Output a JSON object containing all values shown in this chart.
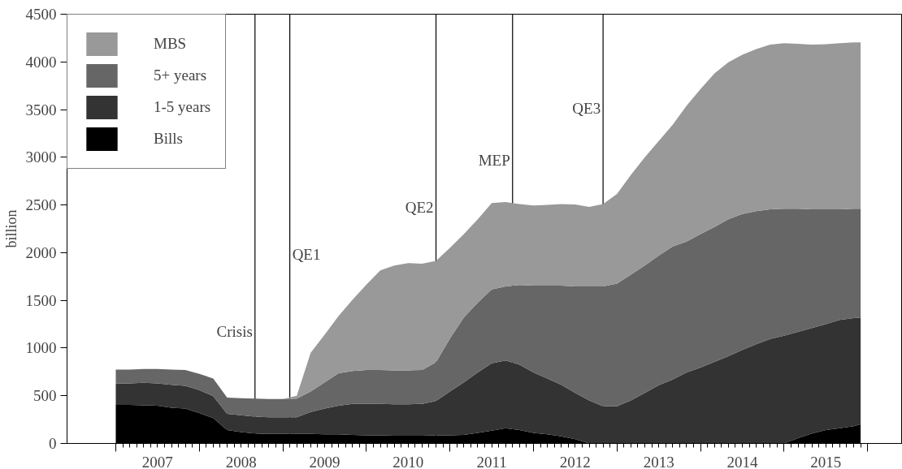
{
  "chart_data": {
    "type": "area",
    "stacked": true,
    "ylabel": "billion",
    "x": [
      "2007-01",
      "2007-03",
      "2007-05",
      "2007-07",
      "2007-09",
      "2007-11",
      "2008-01",
      "2008-03",
      "2008-05",
      "2008-07",
      "2008-09",
      "2008-11",
      "2009-01",
      "2009-03",
      "2009-05",
      "2009-07",
      "2009-09",
      "2009-11",
      "2010-01",
      "2010-03",
      "2010-05",
      "2010-07",
      "2010-09",
      "2010-11",
      "2011-01",
      "2011-03",
      "2011-05",
      "2011-07",
      "2011-09",
      "2011-11",
      "2012-01",
      "2012-03",
      "2012-05",
      "2012-07",
      "2012-09",
      "2012-11",
      "2013-01",
      "2013-03",
      "2013-05",
      "2013-07",
      "2013-09",
      "2013-11",
      "2014-01",
      "2014-03",
      "2014-05",
      "2014-07",
      "2014-09",
      "2014-11",
      "2015-01",
      "2015-03",
      "2015-05",
      "2015-07",
      "2015-09",
      "2015-11",
      "2015-12"
    ],
    "series": [
      {
        "name": "Bills",
        "color": "#000000",
        "values": [
          405,
          405,
          400,
          395,
          375,
          365,
          320,
          265,
          140,
          120,
          105,
          100,
          100,
          100,
          100,
          95,
          95,
          90,
          85,
          85,
          80,
          80,
          80,
          85,
          85,
          90,
          110,
          135,
          160,
          140,
          110,
          95,
          75,
          45,
          0,
          0,
          0,
          0,
          0,
          0,
          0,
          0,
          0,
          0,
          0,
          0,
          0,
          0,
          0,
          55,
          105,
          140,
          160,
          180,
          200
        ]
      },
      {
        "name": "1-5 years",
        "color": "#333333",
        "values": [
          225,
          225,
          235,
          235,
          240,
          240,
          240,
          230,
          170,
          175,
          175,
          175,
          175,
          175,
          230,
          270,
          300,
          325,
          330,
          330,
          330,
          330,
          335,
          360,
          460,
          550,
          635,
          705,
          710,
          685,
          635,
          585,
          540,
          485,
          450,
          390,
          390,
          450,
          530,
          610,
          670,
          745,
          795,
          855,
          915,
          980,
          1040,
          1095,
          1130,
          1115,
          1105,
          1110,
          1135,
          1135,
          1120
        ]
      },
      {
        "name": "5+ years",
        "color": "#666666",
        "values": [
          145,
          145,
          145,
          150,
          160,
          165,
          170,
          185,
          170,
          180,
          190,
          190,
          190,
          195,
          215,
          275,
          340,
          345,
          355,
          355,
          355,
          355,
          355,
          405,
          555,
          680,
          730,
          775,
          775,
          835,
          910,
          975,
          1040,
          1115,
          1195,
          1255,
          1285,
          1320,
          1335,
          1360,
          1395,
          1370,
          1400,
          1415,
          1435,
          1425,
          1395,
          1360,
          1330,
          1290,
          1245,
          1205,
          1160,
          1145,
          1140
        ]
      },
      {
        "name": "MBS",
        "color": "#999999",
        "values": [
          0,
          0,
          0,
          0,
          0,
          0,
          0,
          0,
          0,
          0,
          0,
          0,
          0,
          30,
          405,
          500,
          600,
          745,
          895,
          1045,
          1100,
          1125,
          1115,
          1065,
          950,
          875,
          875,
          905,
          885,
          850,
          840,
          845,
          855,
          860,
          835,
          865,
          940,
          1045,
          1135,
          1200,
          1275,
          1425,
          1520,
          1610,
          1645,
          1670,
          1700,
          1725,
          1735,
          1730,
          1725,
          1730,
          1740,
          1745,
          1745
        ]
      }
    ],
    "xlim": [
      "2006-06",
      "2016-06"
    ],
    "xticks": [
      {
        "value": "2007",
        "label": null
      },
      {
        "value": "2008",
        "label": null
      },
      {
        "value": "2009",
        "label": null
      },
      {
        "value": "2010",
        "label": null
      },
      {
        "value": "2011",
        "label": null
      },
      {
        "value": "2012",
        "label": null
      },
      {
        "value": "2013",
        "label": null
      },
      {
        "value": "2014",
        "label": null
      },
      {
        "value": "2015",
        "label": null
      },
      {
        "value": "2016",
        "label": null
      },
      {
        "value": "2007-07",
        "label": "2007"
      },
      {
        "value": "2008-07",
        "label": "2008"
      },
      {
        "value": "2009-07",
        "label": "2009"
      },
      {
        "value": "2010-07",
        "label": "2010"
      },
      {
        "value": "2011-07",
        "label": "2011"
      },
      {
        "value": "2012-07",
        "label": "2012"
      },
      {
        "value": "2013-07",
        "label": "2013"
      },
      {
        "value": "2014-07",
        "label": "2014"
      },
      {
        "value": "2015-07",
        "label": "2015"
      }
    ],
    "ylim": [
      0,
      4500
    ],
    "yticks": [
      0,
      500,
      1000,
      1500,
      2000,
      2500,
      3000,
      3500,
      4000,
      4500
    ],
    "ref_lines": [
      {
        "axis": "x",
        "value": "2008-09",
        "label": "Crisis"
      },
      {
        "axis": "x",
        "value": "2009-02",
        "label": "QE1"
      },
      {
        "axis": "x",
        "value": "2010-11",
        "label": "QE2"
      },
      {
        "axis": "x",
        "value": "2011-10",
        "label": "MEP"
      },
      {
        "axis": "x",
        "value": "2012-11",
        "label": "QE3"
      }
    ],
    "legend": "top left"
  }
}
